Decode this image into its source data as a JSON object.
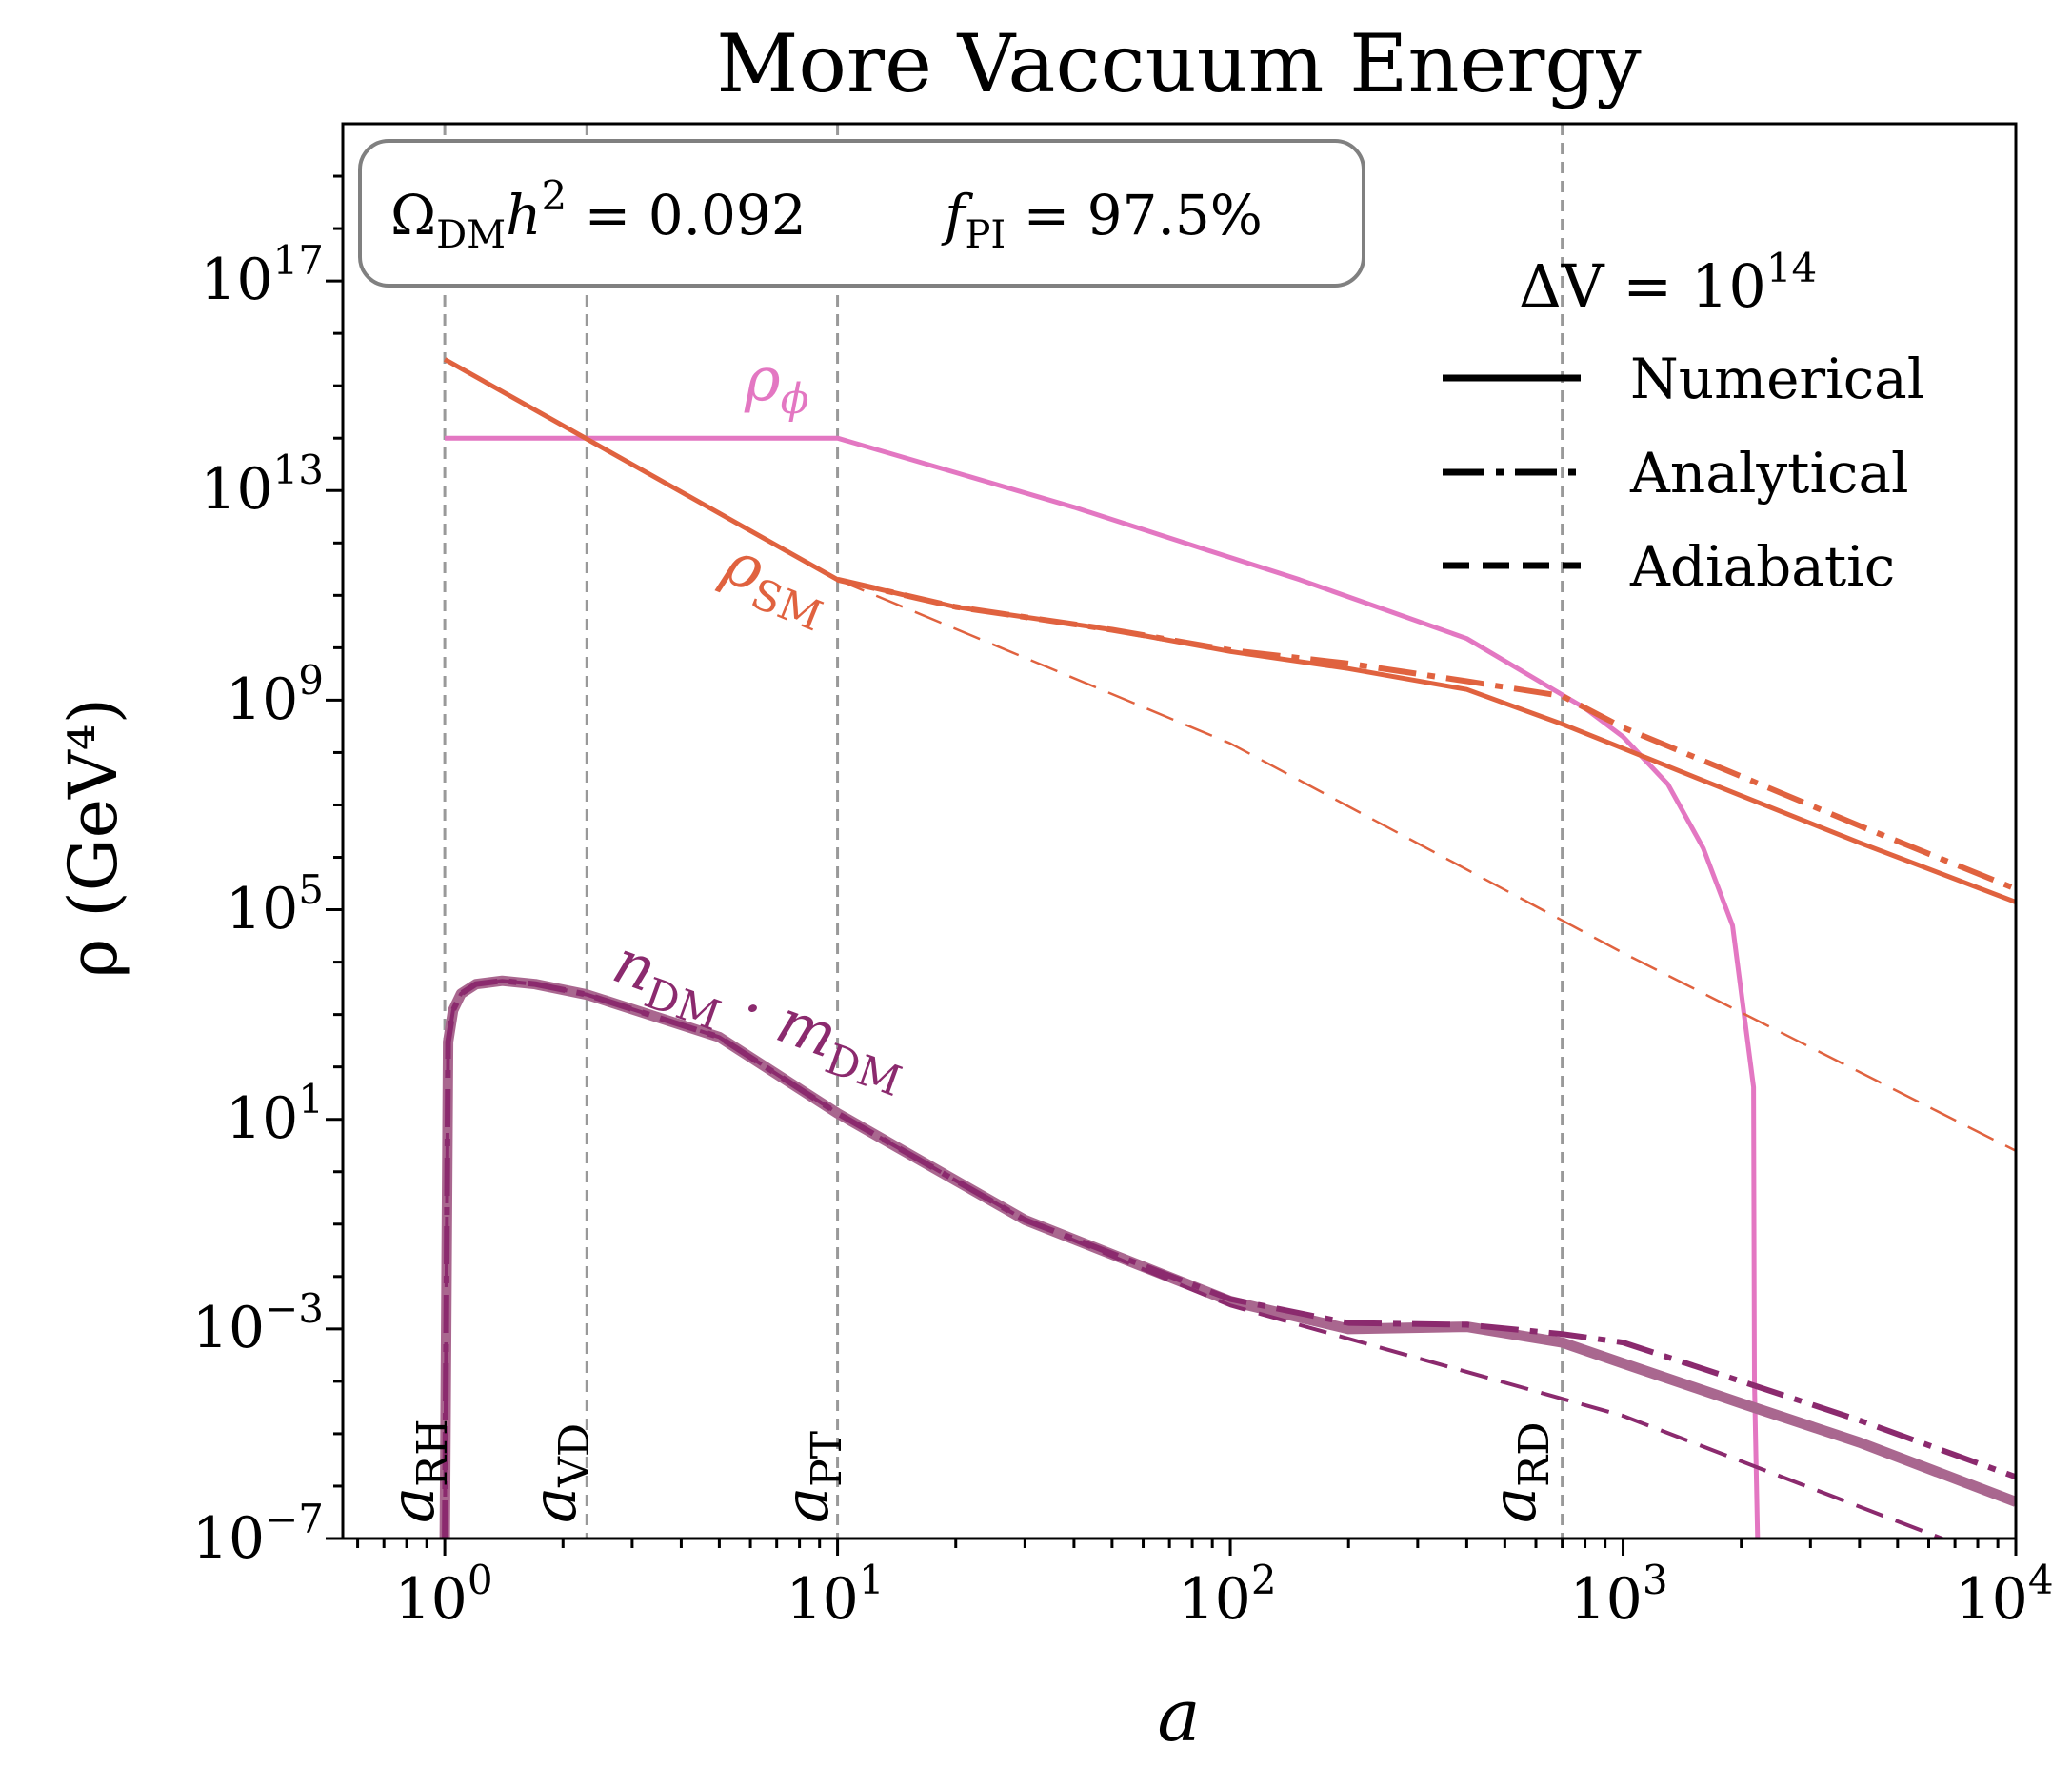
{
  "chart_data": {
    "type": "line",
    "title": "More Vaccuum Energy",
    "xlabel": "a",
    "ylabel": "ρ (GeV⁴)",
    "x_scale": "log",
    "y_scale": "log",
    "xlim": [
      0.55,
      10000
    ],
    "ylim": [
      1e-07,
      1e+20
    ],
    "x_ticks": [
      {
        "value": 1,
        "base": "10",
        "exp": "0"
      },
      {
        "value": 10,
        "base": "10",
        "exp": "1"
      },
      {
        "value": 100,
        "base": "10",
        "exp": "2"
      },
      {
        "value": 1000,
        "base": "10",
        "exp": "3"
      },
      {
        "value": 10000,
        "base": "10",
        "exp": "4"
      }
    ],
    "y_ticks": [
      {
        "value": 1e-07,
        "base": "10",
        "exp": "−7"
      },
      {
        "value": 0.001,
        "base": "10",
        "exp": "−3"
      },
      {
        "value": 10,
        "base": "10",
        "exp": "1"
      },
      {
        "value": 100000,
        "base": "10",
        "exp": "5"
      },
      {
        "value": 1000000000.0,
        "base": "10",
        "exp": "9"
      },
      {
        "value": 10000000000000.0,
        "base": "10",
        "exp": "13"
      },
      {
        "value": 1e+17,
        "base": "10",
        "exp": "17"
      }
    ],
    "info_box": {
      "omega": "Ω",
      "omega_sub": "DM",
      "h": "h",
      "h_sup": "2",
      "omega_value": " = 0.092",
      "f": "f",
      "f_sub": "PI",
      "f_value": " = 97.5%"
    },
    "legend": {
      "title": "ΔV = 10",
      "title_exp": "14",
      "placement": "upper right",
      "entries": [
        {
          "label": "Numerical",
          "style": "solid"
        },
        {
          "label": "Analytical",
          "style": "dashdot"
        },
        {
          "label": "Adiabatic",
          "style": "dashed"
        }
      ]
    },
    "vlines": [
      {
        "x": 1,
        "label": "a",
        "sub": "RH"
      },
      {
        "x": 2.3,
        "label": "a",
        "sub": "VD"
      },
      {
        "x": 10,
        "label": "a",
        "sub": "PT"
      },
      {
        "x": 700,
        "label": "a",
        "sub": "RD"
      }
    ],
    "curve_labels": [
      {
        "text": "ρ",
        "sub": "ϕ",
        "color": "#e377c2"
      },
      {
        "text": "ρ",
        "sub": "SM",
        "color": "#e0623f"
      },
      {
        "text": "n",
        "sub": "DM",
        "mid": " · m",
        "sub2": "DM",
        "color": "#8b2a6e"
      }
    ],
    "colors": {
      "rho_phi": "#e377c2",
      "rho_sm": "#e0623f",
      "dm": "#8b2a6e",
      "dm_numerical": "#a9678f",
      "vline": "#999999"
    },
    "series": [
      {
        "name": "ρ_ϕ",
        "style": "solid",
        "color": "#e377c2",
        "x": [
          1,
          10,
          20,
          40,
          80,
          150,
          250,
          400,
          600,
          800,
          1000,
          1300,
          1600,
          1900,
          2150,
          2160,
          2200
        ],
        "y": [
          100000000000000.0,
          100000000000000.0,
          22000000000000.0,
          4800000000000.0,
          900000000000.0,
          200000000000.0,
          52000000000.0,
          15000000000.0,
          2500000000.0,
          700000000.0,
          200000000.0,
          25000000.0,
          1500000.0,
          50000.0,
          41.0,
          0.0001,
          1e-07
        ]
      },
      {
        "name": "ρ_SM",
        "style": "solid",
        "color": "#e0623f",
        "x": [
          1,
          10,
          20,
          50,
          100,
          200,
          400,
          700,
          1000,
          2000,
          4000,
          10000
        ],
        "y": [
          3200000000000000.0,
          200000000000.0,
          60000000000.0,
          22000000000.0,
          8500000000.0,
          4000000000.0,
          1600000000.0,
          350000000.0,
          120000000.0,
          15000000.0,
          1900000.0,
          140000.0
        ]
      },
      {
        "name": "ρ_SM",
        "style": "dashdot",
        "color": "#e0623f",
        "x": [
          10,
          20,
          50,
          100,
          200,
          400,
          700,
          1000,
          2000,
          4000,
          10000
        ],
        "y": [
          200000000000.0,
          60000000000.0,
          22000000000.0,
          9000000000.0,
          5000000000.0,
          2300000000.0,
          1200000000.0,
          300000000.0,
          35000000.0,
          4000000.0,
          250000.0
        ]
      },
      {
        "name": "ρ_SM",
        "style": "dashed",
        "color": "#e0623f",
        "x": [
          10,
          100,
          1000,
          10000
        ],
        "y": [
          200000000000.0,
          150000000.0,
          15000.0,
          2.5
        ]
      },
      {
        "name": "n_DM · m_DM",
        "style": "solid",
        "color": "#a9678f",
        "x": [
          1,
          1.02,
          1.05,
          1.1,
          1.2,
          1.4,
          1.7,
          2.3,
          5,
          10,
          30,
          100,
          200,
          400,
          700,
          1000,
          2000,
          4000,
          10000
        ],
        "y": [
          1e-07,
          300.0,
          1200.0,
          2500.0,
          3800.0,
          4400.0,
          3800.0,
          2400.0,
          370.0,
          13.0,
          0.12,
          0.0034,
          0.001,
          0.0011,
          0.00055,
          0.00022,
          3.8e-05,
          6.8e-06,
          5e-07
        ]
      },
      {
        "name": "n_DM · m_DM",
        "style": "dashdot",
        "color": "#8b2a6e",
        "x": [
          1,
          1.02,
          1.05,
          1.1,
          1.2,
          1.4,
          1.7,
          2.3,
          5,
          10,
          30,
          100,
          200,
          400,
          700,
          1000,
          2000,
          4000,
          10000
        ],
        "y": [
          1e-07,
          300.0,
          1200.0,
          2500.0,
          3800.0,
          4400.0,
          3800.0,
          2400.0,
          370.0,
          13.0,
          0.12,
          0.0037,
          0.0013,
          0.0012,
          0.0008,
          0.00055,
          0.0001,
          1.8e-05,
          1.5e-06
        ]
      },
      {
        "name": "n_DM · m_DM",
        "style": "dashed",
        "color": "#8b2a6e",
        "x": [
          1,
          1.02,
          1.05,
          1.1,
          1.2,
          1.4,
          1.7,
          2.3,
          5,
          10,
          30,
          100,
          1000,
          6500
        ],
        "y": [
          1e-07,
          300.0,
          1200.0,
          2500.0,
          3800.0,
          4400.0,
          3800.0,
          2400.0,
          370.0,
          13.0,
          0.12,
          0.0028,
          2.2e-05,
          1e-07
        ]
      }
    ]
  }
}
